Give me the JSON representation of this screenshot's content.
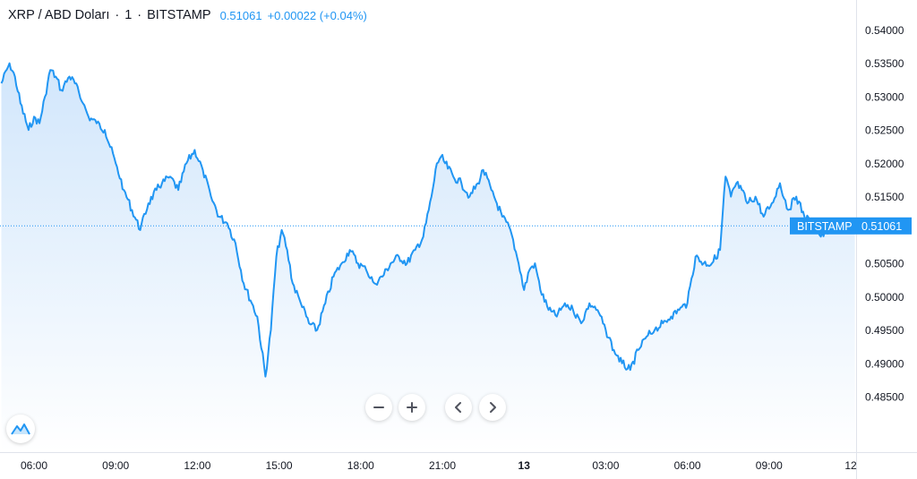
{
  "header": {
    "symbol": "XRP / ABD Doları",
    "interval": "1",
    "exchange": "BITSTAMP",
    "last_price": "0.51061",
    "change": "+0.00022 (+0.04%)"
  },
  "price_tag": {
    "label": "BITSTAMP",
    "value": "0.51061"
  },
  "controls": {
    "zoom_out_icon": "minus-icon",
    "zoom_in_icon": "plus-icon",
    "scroll_left_icon": "chevron-left-icon",
    "scroll_right_icon": "chevron-right-icon",
    "logo_icon": "tradingview-logo-icon"
  },
  "colors": {
    "line": "#2196f3",
    "area_top": "#cfe5fb",
    "area_bottom": "#ffffff",
    "price_tag_bg": "#2196f3",
    "axis_text": "#131722"
  },
  "chart_data": {
    "type": "area",
    "title": "XRP / ABD Doları",
    "xlabel": "",
    "ylabel": "",
    "ylim": [
      0.482,
      0.544
    ],
    "y_ticks": [
      "0.54000",
      "0.53500",
      "0.53000",
      "0.52500",
      "0.52000",
      "0.51500",
      "0.51000",
      "0.50500",
      "0.50000",
      "0.49500",
      "0.49000",
      "0.48500"
    ],
    "x_ticks": [
      {
        "label": "06:00",
        "h": 6
      },
      {
        "label": "09:00",
        "h": 9
      },
      {
        "label": "12:00",
        "h": 12
      },
      {
        "label": "15:00",
        "h": 15
      },
      {
        "label": "18:00",
        "h": 18
      },
      {
        "label": "21:00",
        "h": 21
      },
      {
        "label": "13",
        "h": 24,
        "bold": true
      },
      {
        "label": "03:00",
        "h": 27
      },
      {
        "label": "06:00",
        "h": 30
      },
      {
        "label": "09:00",
        "h": 33
      },
      {
        "label": "12",
        "h": 36
      }
    ],
    "x_range_hours": [
      4.8,
      36.2
    ],
    "current_price": 0.51061,
    "series": [
      {
        "x": [
          4.8,
          5.1,
          5.3,
          5.5,
          5.8,
          6.0,
          6.2,
          6.4,
          6.6,
          6.8,
          7.0,
          7.3,
          7.5,
          7.8,
          8.0,
          8.3,
          8.6,
          9.0,
          9.3,
          9.6,
          9.9,
          10.2,
          10.5,
          10.7,
          11.0,
          11.3,
          11.6,
          11.9,
          12.2,
          12.5,
          12.8,
          13.1,
          13.4,
          13.7,
          14.0,
          14.2,
          14.5,
          14.7,
          14.9,
          15.1,
          15.3,
          15.5,
          15.8,
          16.1,
          16.4,
          16.7,
          17.0,
          17.3,
          17.6,
          17.9,
          18.2,
          18.5,
          18.8,
          19.1,
          19.4,
          19.7,
          20.0,
          20.3,
          20.6,
          20.8,
          20.95,
          21.1,
          21.4,
          21.7,
          22.0,
          22.3,
          22.5,
          22.8,
          23.0,
          23.2,
          23.5,
          23.8,
          24.0,
          24.2,
          24.4,
          24.6,
          24.9,
          25.2,
          25.5,
          25.8,
          26.1,
          26.4,
          26.7,
          27.0,
          27.3,
          27.6,
          27.9,
          28.2,
          28.5,
          28.8,
          29.1,
          29.4,
          29.7,
          30.0,
          30.3,
          30.6,
          30.9,
          31.2,
          31.4,
          31.6,
          31.8,
          32.0,
          32.2,
          32.5,
          32.8,
          33.1,
          33.4,
          33.7,
          34.0,
          34.3,
          34.6,
          34.9,
          35.2,
          35.5,
          35.8,
          36.0,
          36.2
        ],
        "values": [
          0.532,
          0.535,
          0.533,
          0.529,
          0.525,
          0.527,
          0.526,
          0.53,
          0.534,
          0.533,
          0.531,
          0.533,
          0.532,
          0.529,
          0.527,
          0.526,
          0.525,
          0.52,
          0.516,
          0.513,
          0.51,
          0.514,
          0.516,
          0.517,
          0.518,
          0.516,
          0.52,
          0.522,
          0.519,
          0.515,
          0.512,
          0.511,
          0.508,
          0.502,
          0.499,
          0.497,
          0.488,
          0.495,
          0.506,
          0.51,
          0.507,
          0.502,
          0.499,
          0.496,
          0.495,
          0.499,
          0.503,
          0.505,
          0.507,
          0.505,
          0.504,
          0.502,
          0.503,
          0.505,
          0.506,
          0.505,
          0.507,
          0.509,
          0.515,
          0.52,
          0.521,
          0.52,
          0.518,
          0.517,
          0.515,
          0.517,
          0.519,
          0.516,
          0.514,
          0.512,
          0.51,
          0.505,
          0.501,
          0.504,
          0.505,
          0.501,
          0.498,
          0.497,
          0.499,
          0.498,
          0.496,
          0.499,
          0.498,
          0.495,
          0.492,
          0.49,
          0.489,
          0.492,
          0.494,
          0.495,
          0.496,
          0.497,
          0.498,
          0.499,
          0.506,
          0.505,
          0.505,
          0.507,
          0.518,
          0.515,
          0.517,
          0.516,
          0.514,
          0.515,
          0.512,
          0.514,
          0.517,
          0.513,
          0.515,
          0.512,
          0.511,
          0.509,
          0.51,
          0.51,
          0.511,
          0.5106,
          0.5106
        ]
      }
    ],
    "grid": false,
    "legend": "none"
  }
}
